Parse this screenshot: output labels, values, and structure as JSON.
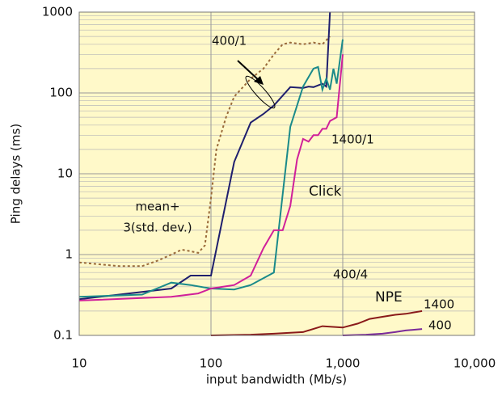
{
  "chart_data": {
    "type": "line",
    "x_label": "input bandwidth (Mb/s)",
    "y_label": "Ping delays (ms)",
    "xscale": "log",
    "yscale": "log",
    "grid": true,
    "background": "#fff9c9",
    "xlim": [
      10,
      10000
    ],
    "xticks": [
      10,
      100,
      {
        "value": 1000,
        "label": "1,000"
      },
      {
        "value": 10000,
        "label": "10,000"
      }
    ],
    "ylim": [
      0.1,
      1000
    ],
    "yticks": [
      1000,
      100,
      10,
      1,
      0.1
    ],
    "annotations": [
      "Click",
      "NPE"
    ],
    "series": [
      {
        "name": [
          "mean+",
          "3(std. dev.)"
        ],
        "color": "#9a6a3a",
        "dash": "3,3",
        "x": [
          10,
          20,
          30,
          40,
          50,
          60,
          70,
          80,
          90,
          100,
          110,
          130,
          150,
          200,
          250,
          300,
          350,
          400,
          500,
          600,
          700,
          800
        ],
        "values": [
          0.8,
          0.72,
          0.72,
          0.85,
          1.0,
          1.15,
          1.1,
          1.05,
          1.3,
          5,
          20,
          50,
          90,
          150,
          200,
          300,
          400,
          420,
          400,
          420,
          400,
          500
        ]
      },
      {
        "name": "400/1",
        "color": "#1f1f6e",
        "x": [
          10,
          50,
          70,
          100,
          150,
          200,
          250,
          300,
          400,
          500,
          550,
          600,
          700,
          750,
          800
        ],
        "values": [
          0.28,
          0.38,
          0.55,
          0.55,
          14,
          43,
          55,
          70,
          118,
          115,
          120,
          118,
          130,
          120,
          1000
        ]
      },
      {
        "name": "400/4",
        "color": "#1a8a8a",
        "x": [
          10,
          30,
          50,
          70,
          100,
          150,
          200,
          300,
          400,
          450,
          500,
          600,
          650,
          700,
          750,
          800,
          850,
          900,
          1000
        ],
        "values": [
          0.3,
          0.32,
          0.45,
          0.42,
          0.38,
          0.37,
          0.42,
          0.6,
          38,
          70,
          120,
          200,
          210,
          110,
          150,
          110,
          200,
          130,
          460
        ]
      },
      {
        "name": "1400/1",
        "color": "#d0209a",
        "x": [
          10,
          50,
          80,
          100,
          150,
          200,
          250,
          300,
          350,
          400,
          450,
          500,
          550,
          600,
          650,
          700,
          750,
          800,
          900,
          1000
        ],
        "values": [
          0.27,
          0.3,
          0.33,
          0.38,
          0.42,
          0.55,
          1.2,
          2,
          2,
          4,
          15,
          27,
          25,
          30,
          30,
          36,
          36,
          45,
          50,
          300
        ]
      },
      {
        "name": "1400",
        "color": "#8a1a1a",
        "x": [
          100,
          200,
          300,
          500,
          700,
          1000,
          1300,
          1600,
          2000,
          2500,
          3000,
          4000
        ],
        "values": [
          0.1,
          0.102,
          0.105,
          0.11,
          0.13,
          0.125,
          0.14,
          0.16,
          0.17,
          0.18,
          0.185,
          0.2
        ]
      },
      {
        "name": "400",
        "color": "#7a2a9a",
        "x": [
          1000,
          1500,
          2000,
          2500,
          3000,
          4000
        ],
        "values": [
          0.1,
          0.102,
          0.105,
          0.11,
          0.115,
          0.12
        ]
      }
    ]
  }
}
